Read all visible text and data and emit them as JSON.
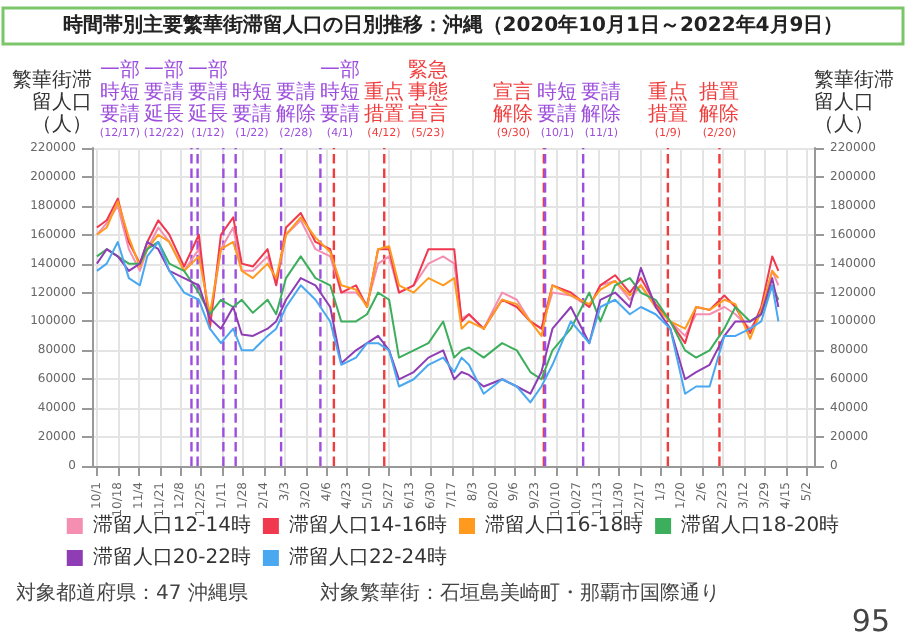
{
  "chart_data": {
    "type": "line",
    "title": "時間帯別主要繁華街滞留人口の日別推移：沖縄（2020年10月1日～2022年4月9日）",
    "ylabel": "繁華街滞留人口（人）",
    "y2label": "繁華街滞留人口（人）",
    "x": [
      "2020-10-01",
      "2020-10-09",
      "2020-10-18",
      "2020-10-27",
      "2020-11-05",
      "2020-11-11",
      "2020-11-20",
      "2020-11-29",
      "2020-12-11",
      "2020-12-23",
      "2021-01-01",
      "2021-01-10",
      "2021-01-20",
      "2021-01-27",
      "2021-02-05",
      "2021-02-17",
      "2021-02-24",
      "2021-03-04",
      "2021-03-16",
      "2021-03-28",
      "2021-04-09",
      "2021-04-18",
      "2021-04-30",
      "2021-05-09",
      "2021-05-18",
      "2021-05-27",
      "2021-06-04",
      "2021-06-16",
      "2021-06-28",
      "2021-07-10",
      "2021-07-19",
      "2021-07-25",
      "2021-07-31",
      "2021-08-12",
      "2021-08-27",
      "2021-09-08",
      "2021-09-19",
      "2021-09-28",
      "2021-10-07",
      "2021-10-22",
      "2021-11-06",
      "2021-11-15",
      "2021-11-27",
      "2021-12-09",
      "2021-12-18",
      "2021-12-30",
      "2022-01-11",
      "2022-01-23",
      "2022-02-01",
      "2022-02-12",
      "2022-02-24",
      "2022-03-05",
      "2022-03-17",
      "2022-03-26",
      "2022-04-04",
      "2022-04-09"
    ],
    "series": [
      {
        "name": "滞留人口12-14時",
        "color": "#f48fb1",
        "values": [
          160000,
          168000,
          180000,
          150000,
          135000,
          150000,
          165000,
          155000,
          135000,
          150000,
          100000,
          150000,
          165000,
          135000,
          135000,
          145000,
          125000,
          160000,
          170000,
          150000,
          145000,
          120000,
          120000,
          112000,
          140000,
          145000,
          120000,
          125000,
          140000,
          145000,
          140000,
          102000,
          105000,
          95000,
          120000,
          115000,
          100000,
          95000,
          120000,
          118000,
          110000,
          125000,
          128000,
          115000,
          125000,
          110000,
          100000,
          90000,
          105000,
          105000,
          110000,
          105000,
          95000,
          105000,
          135000,
          125000
        ]
      },
      {
        "name": "滞留人口14-16時",
        "color": "#f0384f",
        "values": [
          165000,
          170000,
          185000,
          155000,
          140000,
          155000,
          170000,
          160000,
          138000,
          160000,
          95000,
          160000,
          172000,
          140000,
          138000,
          150000,
          125000,
          165000,
          175000,
          155000,
          150000,
          120000,
          125000,
          110000,
          150000,
          150000,
          120000,
          125000,
          150000,
          150000,
          150000,
          100000,
          105000,
          95000,
          115000,
          110000,
          100000,
          95000,
          125000,
          120000,
          110000,
          125000,
          132000,
          120000,
          130000,
          112000,
          100000,
          85000,
          110000,
          108000,
          118000,
          110000,
          92000,
          110000,
          145000,
          135000
        ]
      },
      {
        "name": "滞留人口16-18時",
        "color": "#ff9a1f",
        "values": [
          160000,
          165000,
          183000,
          158000,
          138000,
          150000,
          160000,
          155000,
          135000,
          145000,
          105000,
          150000,
          155000,
          135000,
          130000,
          140000,
          130000,
          160000,
          172000,
          158000,
          148000,
          125000,
          122000,
          110000,
          150000,
          152000,
          125000,
          120000,
          130000,
          125000,
          130000,
          95000,
          100000,
          95000,
          115000,
          112000,
          100000,
          90000,
          125000,
          118000,
          112000,
          122000,
          128000,
          118000,
          125000,
          110000,
          100000,
          95000,
          110000,
          108000,
          115000,
          112000,
          88000,
          108000,
          135000,
          130000
        ]
      },
      {
        "name": "滞留人口18-20時",
        "color": "#3cae5c",
        "values": [
          145000,
          150000,
          145000,
          140000,
          140000,
          150000,
          155000,
          140000,
          135000,
          120000,
          105000,
          115000,
          110000,
          115000,
          106000,
          115000,
          105000,
          130000,
          145000,
          130000,
          125000,
          100000,
          100000,
          105000,
          120000,
          115000,
          75000,
          80000,
          85000,
          100000,
          75000,
          80000,
          82000,
          75000,
          85000,
          80000,
          65000,
          60000,
          80000,
          95000,
          120000,
          100000,
          125000,
          130000,
          120000,
          115000,
          100000,
          80000,
          75000,
          80000,
          95000,
          110000,
          100000,
          105000,
          125000,
          115000
        ]
      },
      {
        "name": "滞留人口20-22時",
        "color": "#8e3db5",
        "values": [
          140000,
          150000,
          145000,
          135000,
          140000,
          155000,
          150000,
          135000,
          130000,
          125000,
          102000,
          95000,
          110000,
          91000,
          90000,
          95000,
          100000,
          115000,
          130000,
          125000,
          110000,
          71000,
          80000,
          85000,
          90000,
          80000,
          60000,
          65000,
          75000,
          80000,
          60000,
          65000,
          63000,
          55000,
          60000,
          55000,
          50000,
          65000,
          95000,
          110000,
          85000,
          115000,
          120000,
          110000,
          137000,
          110000,
          95000,
          60000,
          65000,
          70000,
          90000,
          100000,
          100000,
          105000,
          130000,
          110000
        ]
      },
      {
        "name": "滞留人口22-24時",
        "color": "#4aa8f0",
        "values": [
          135000,
          140000,
          155000,
          130000,
          125000,
          145000,
          155000,
          135000,
          120000,
          115000,
          95000,
          85000,
          95000,
          80000,
          80000,
          90000,
          95000,
          110000,
          125000,
          115000,
          100000,
          70000,
          75000,
          85000,
          85000,
          80000,
          55000,
          60000,
          70000,
          75000,
          65000,
          75000,
          70000,
          50000,
          60000,
          55000,
          44000,
          55000,
          70000,
          100000,
          85000,
          110000,
          115000,
          105000,
          110000,
          105000,
          95000,
          50000,
          55000,
          55000,
          90000,
          90000,
          95000,
          100000,
          125000,
          100000
        ]
      }
    ],
    "xlim": [
      "2020-09-27",
      "2022-05-08"
    ],
    "xticks": [
      {
        "value": "2020-10-01",
        "label": "10/1"
      },
      {
        "value": "2020-10-18",
        "label": "10/18"
      },
      {
        "value": "2020-11-04",
        "label": "11/4"
      },
      {
        "value": "2020-11-21",
        "label": "11/21"
      },
      {
        "value": "2020-12-08",
        "label": "12/8"
      },
      {
        "value": "2020-12-25",
        "label": "12/25"
      },
      {
        "value": "2021-01-11",
        "label": "1/11"
      },
      {
        "value": "2021-01-28",
        "label": "1/28"
      },
      {
        "value": "2021-02-14",
        "label": "2/14"
      },
      {
        "value": "2021-03-03",
        "label": "3/3"
      },
      {
        "value": "2021-03-20",
        "label": "3/20"
      },
      {
        "value": "2021-04-06",
        "label": "4/6"
      },
      {
        "value": "2021-04-23",
        "label": "4/23"
      },
      {
        "value": "2021-05-10",
        "label": "5/10"
      },
      {
        "value": "2021-05-27",
        "label": "5/27"
      },
      {
        "value": "2021-06-13",
        "label": "6/13"
      },
      {
        "value": "2021-06-30",
        "label": "6/30"
      },
      {
        "value": "2021-07-17",
        "label": "7/17"
      },
      {
        "value": "2021-08-03",
        "label": "8/3"
      },
      {
        "value": "2021-08-20",
        "label": "8/20"
      },
      {
        "value": "2021-09-06",
        "label": "9/6"
      },
      {
        "value": "2021-09-23",
        "label": "9/23"
      },
      {
        "value": "2021-10-10",
        "label": "10/10"
      },
      {
        "value": "2021-10-27",
        "label": "10/27"
      },
      {
        "value": "2021-11-13",
        "label": "11/13"
      },
      {
        "value": "2021-11-30",
        "label": "11/30"
      },
      {
        "value": "2021-12-17",
        "label": "12/17"
      },
      {
        "value": "2022-01-03",
        "label": "1/3"
      },
      {
        "value": "2022-01-20",
        "label": "1/20"
      },
      {
        "value": "2022-02-06",
        "label": "2/6"
      },
      {
        "value": "2022-02-23",
        "label": "2/23"
      },
      {
        "value": "2022-03-12",
        "label": "3/12"
      },
      {
        "value": "2022-03-29",
        "label": "3/29"
      },
      {
        "value": "2022-04-15",
        "label": "4/15"
      },
      {
        "value": "2022-05-02",
        "label": "5/2"
      }
    ],
    "ylim": [
      0,
      220000
    ],
    "yticks": [
      0,
      20000,
      40000,
      60000,
      80000,
      100000,
      120000,
      140000,
      160000,
      180000,
      200000,
      220000
    ],
    "y2lim": [
      0,
      220000
    ],
    "y2ticks": [
      0,
      20000,
      40000,
      60000,
      80000,
      100000,
      120000,
      140000,
      160000,
      180000,
      200000,
      220000
    ],
    "ref_lines": [
      {
        "axis": "x",
        "value": "2020-12-17",
        "label": "一部時短要請(12/17)",
        "color": "#9d4edd",
        "line_style": "dashed"
      },
      {
        "axis": "x",
        "value": "2020-12-22",
        "label": "一部要請延長(12/22)",
        "color": "#9d4edd",
        "line_style": "dashed"
      },
      {
        "axis": "x",
        "value": "2021-01-12",
        "label": "一部要請延長(1/12)",
        "color": "#9d4edd",
        "line_style": "dashed"
      },
      {
        "axis": "x",
        "value": "2021-01-22",
        "label": "時短要請(1/22)",
        "color": "#9d4edd",
        "line_style": "dashed"
      },
      {
        "axis": "x",
        "value": "2021-02-28",
        "label": "要請解除(2/28)",
        "color": "#9d4edd",
        "line_style": "dashed"
      },
      {
        "axis": "x",
        "value": "2021-04-01",
        "label": "一部時短要請(4/1)",
        "color": "#9d4edd",
        "line_style": "dashed"
      },
      {
        "axis": "x",
        "value": "2021-04-12",
        "label": "重点措置(4/12)",
        "color": "#f03c3c",
        "line_style": "dashed"
      },
      {
        "axis": "x",
        "value": "2021-05-23",
        "label": "緊急事態宣言(5/23)",
        "color": "#f03c3c",
        "line_style": "dashed"
      },
      {
        "axis": "x",
        "value": "2021-09-30",
        "label": "宣言解除(9/30)",
        "color": "#f03c3c",
        "line_style": "dashed"
      },
      {
        "axis": "x",
        "value": "2021-10-01",
        "label": "時短要請(10/1)",
        "color": "#9d4edd",
        "line_style": "dashed"
      },
      {
        "axis": "x",
        "value": "2021-11-01",
        "label": "要請解除(11/1)",
        "color": "#9d4edd",
        "line_style": "dashed"
      },
      {
        "axis": "x",
        "value": "2022-01-09",
        "label": "重点措置(1/9)",
        "color": "#f03c3c",
        "line_style": "dashed"
      },
      {
        "axis": "x",
        "value": "2022-02-20",
        "label": "措置解除(2/20)",
        "color": "#f03c3c",
        "line_style": "dashed"
      }
    ],
    "annotations": [
      "対象都道府県：47 沖縄県",
      "対象繁華街：石垣島美崎町・那覇市国際通り",
      "95"
    ],
    "grid": true,
    "legend": "bottom",
    "marker": "none",
    "line_style": "solid"
  }
}
